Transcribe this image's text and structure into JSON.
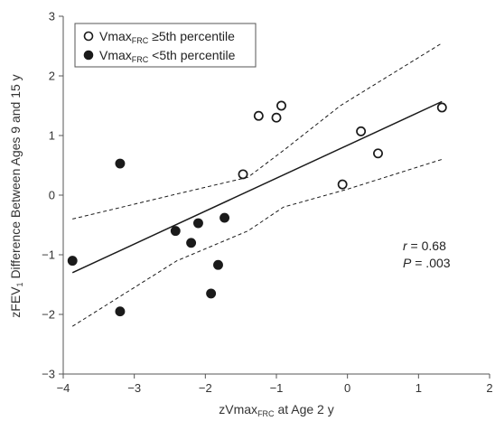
{
  "chart_data": {
    "type": "scatter",
    "xlabel": {
      "pre": "zVmax",
      "sub": "FRC",
      "post": " at Age 2 y"
    },
    "ylabel": {
      "pre": "zFEV",
      "sub": "1",
      "post": " Difference Between Ages 9 and 15 y"
    },
    "xlim": [
      -4,
      2
    ],
    "ylim": [
      -3,
      3
    ],
    "xticks": [
      -4,
      -3,
      -2,
      -1,
      0,
      1,
      2
    ],
    "yticks": [
      -3,
      -2,
      -1,
      0,
      1,
      2,
      3
    ],
    "legend": {
      "placement": "top-left",
      "entries": [
        {
          "pre": "Vmax",
          "sub": "FRC",
          "post": " ≥5th percentile",
          "marker": "open-circle"
        },
        {
          "pre": "Vmax",
          "sub": "FRC",
          "post": " <5th percentile",
          "marker": "filled-circle"
        }
      ]
    },
    "series": [
      {
        "marker": "open-circle",
        "points": [
          [
            -1.47,
            0.35
          ],
          [
            -1.25,
            1.33
          ],
          [
            -1.0,
            1.3
          ],
          [
            -0.93,
            1.5
          ],
          [
            -0.07,
            0.18
          ],
          [
            0.19,
            1.07
          ],
          [
            0.43,
            0.7
          ],
          [
            1.33,
            1.47
          ]
        ]
      },
      {
        "marker": "filled-circle",
        "points": [
          [
            -3.87,
            -1.1
          ],
          [
            -3.2,
            0.53
          ],
          [
            -3.2,
            -1.95
          ],
          [
            -2.42,
            -0.6
          ],
          [
            -2.2,
            -0.8
          ],
          [
            -2.1,
            -0.47
          ],
          [
            -1.92,
            -1.65
          ],
          [
            -1.82,
            -1.17
          ],
          [
            -1.73,
            -0.38
          ]
        ]
      }
    ],
    "fit_line": [
      [
        -3.87,
        -1.3
      ],
      [
        1.33,
        1.57
      ]
    ],
    "confidence_bands": {
      "upper": [
        [
          -3.87,
          -0.4
        ],
        [
          -2.4,
          0.02
        ],
        [
          -1.4,
          0.3
        ],
        [
          -0.9,
          0.75
        ],
        [
          -0.1,
          1.5
        ],
        [
          1.33,
          2.55
        ]
      ],
      "lower": [
        [
          -3.87,
          -2.2
        ],
        [
          -2.4,
          -1.1
        ],
        [
          -1.4,
          -0.6
        ],
        [
          -0.9,
          -0.2
        ],
        [
          0,
          0.1
        ],
        [
          1.33,
          0.6
        ]
      ]
    },
    "annotations": {
      "r_label": "r",
      "r_value": " = 0.68",
      "p_label": "P",
      "p_value": " = .003"
    },
    "colors": {
      "marker": "#1a1a1a",
      "line": "#1a1a1a",
      "axis": "#555555"
    }
  }
}
